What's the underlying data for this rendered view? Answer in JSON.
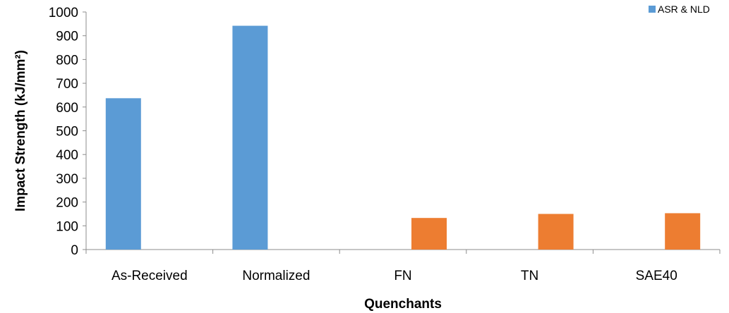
{
  "chart_data": {
    "type": "bar",
    "categories": [
      "As-Received",
      "Normalized",
      "FN",
      "TN",
      "SAE40"
    ],
    "series": [
      {
        "name": "ASR & NLD",
        "values": [
          637,
          942,
          null,
          null,
          null
        ],
        "color": "#5B9BD5"
      },
      {
        "values": [
          null,
          null,
          133,
          150,
          153
        ],
        "color": "#ED7D31"
      }
    ],
    "title": "",
    "xlabel": "Quenchants",
    "ylabel": "Impact Strength (kJ/mm²)",
    "ylim": [
      0,
      1000
    ],
    "yticks": [
      0,
      100,
      200,
      300,
      400,
      500,
      600,
      700,
      800,
      900,
      1000
    ],
    "grid": false,
    "legend_position": "top-right"
  }
}
